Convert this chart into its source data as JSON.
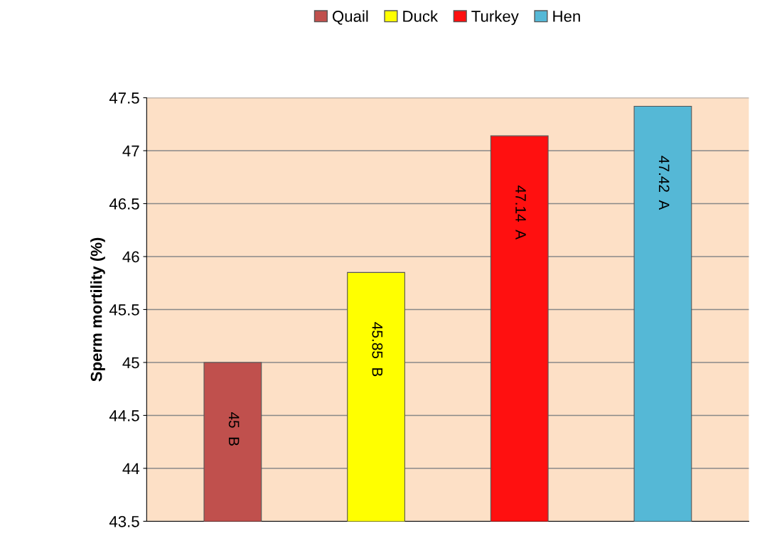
{
  "chart_data": {
    "type": "bar",
    "ylabel": "Sperm mortility (%)",
    "categories": [
      null,
      null,
      null,
      null
    ],
    "series": [
      {
        "name": "Quail",
        "color": "#c0504d",
        "values": [
          45,
          null,
          null,
          null
        ],
        "value_labels": [
          "45  B",
          null,
          null,
          null
        ]
      },
      {
        "name": "Duck",
        "color": "#ffff00",
        "values": [
          null,
          45.85,
          null,
          null
        ],
        "value_labels": [
          null,
          "45.85  B",
          null,
          null
        ]
      },
      {
        "name": "Turkey",
        "color": "#ff1010",
        "values": [
          null,
          null,
          47.14,
          null
        ],
        "value_labels": [
          null,
          null,
          "47.14  A",
          null
        ]
      },
      {
        "name": "Hen",
        "color": "#55b8d6",
        "values": [
          null,
          null,
          null,
          47.42
        ],
        "value_labels": [
          null,
          null,
          null,
          "47.42  A"
        ]
      }
    ],
    "ylim": [
      43.5,
      47.5
    ],
    "yticks": [
      43.5,
      44,
      44.5,
      45,
      45.5,
      46,
      46.5,
      47,
      47.5
    ],
    "grid": "y",
    "legend": "top"
  }
}
